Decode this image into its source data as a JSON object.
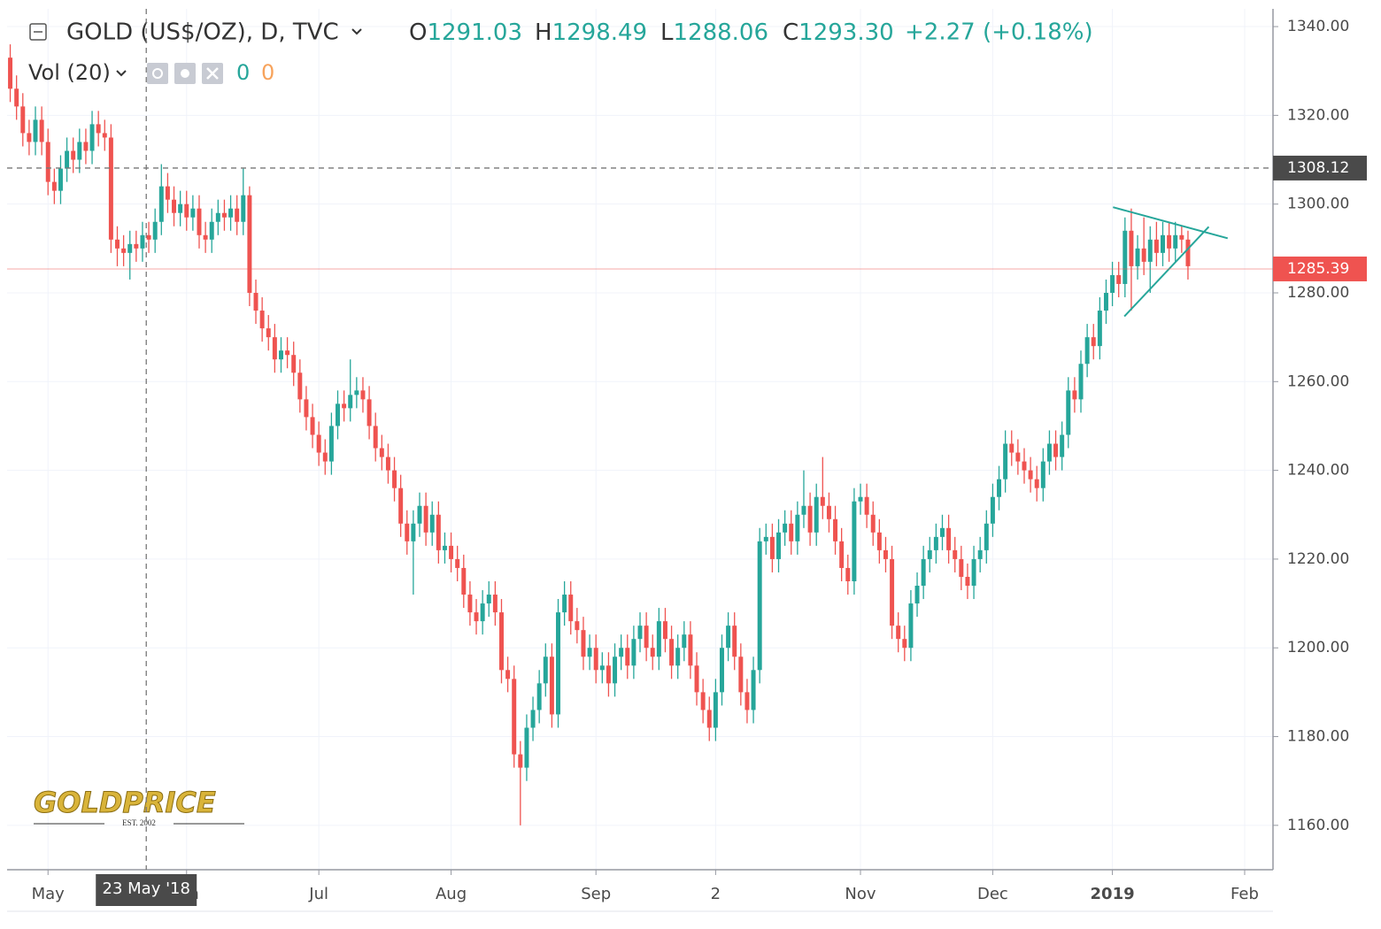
{
  "header": {
    "symbol": "GOLD (US$/OZ), D, TVC",
    "ohlc": [
      {
        "key": "O",
        "value": "1291.03"
      },
      {
        "key": "H",
        "value": "1298.49"
      },
      {
        "key": "L",
        "value": "1288.06"
      },
      {
        "key": "C",
        "value": "1293.30"
      }
    ],
    "change": "+2.27 (+0.18%)"
  },
  "volume_legend": {
    "label": "Vol (20)",
    "values": [
      "0",
      "0"
    ]
  },
  "watermark": {
    "brand": "GOLDPRICE",
    "est": "EST. 2002"
  },
  "chart_data": {
    "type": "candlestick",
    "up_color": "#26a69a",
    "down_color": "#ef5350",
    "grid": true,
    "xlim": [
      -0.5,
      200.5
    ],
    "xticks": [
      {
        "value": 6,
        "label": "May"
      },
      {
        "value": 28,
        "label": "Jun"
      },
      {
        "value": 49,
        "label": "Jul"
      },
      {
        "value": 70,
        "label": "Aug"
      },
      {
        "value": 93,
        "label": "Sep"
      },
      {
        "value": 112,
        "label": "2"
      },
      {
        "value": 135,
        "label": "Nov"
      },
      {
        "value": 156,
        "label": "Dec"
      },
      {
        "value": 175,
        "label": "2019"
      },
      {
        "value": 196,
        "label": "Feb"
      }
    ],
    "ylim": [
      1150,
      1344
    ],
    "yticks": [
      {
        "value": 1160,
        "label": "1160.00"
      },
      {
        "value": 1180,
        "label": "1180.00"
      },
      {
        "value": 1200,
        "label": "1200.00"
      },
      {
        "value": 1220,
        "label": "1220.00"
      },
      {
        "value": 1240,
        "label": "1240.00"
      },
      {
        "value": 1260,
        "label": "1260.00"
      },
      {
        "value": 1280,
        "label": "1280.00"
      },
      {
        "value": 1300,
        "label": "1300.00"
      },
      {
        "value": 1320,
        "label": "1320.00"
      },
      {
        "value": 1340,
        "label": "1340.00"
      }
    ],
    "open": [
      1333,
      1326,
      1322,
      1316,
      1314,
      1319,
      1314,
      1305,
      1303,
      1308,
      1312,
      1310,
      1314,
      1312,
      1318,
      1316,
      1315,
      1292,
      1290,
      1289,
      1291,
      1290,
      1293,
      1292,
      1296,
      1304,
      1301,
      1298,
      1300,
      1297,
      1299,
      1293,
      1292,
      1296,
      1298,
      1297,
      1299,
      1296,
      1302,
      1280,
      1276,
      1272,
      1270,
      1265,
      1267,
      1266,
      1262,
      1256,
      1252,
      1248,
      1244,
      1242,
      1250,
      1255,
      1254,
      1257,
      1258,
      1256,
      1250,
      1245,
      1243,
      1240,
      1236,
      1228,
      1224,
      1228,
      1232,
      1226,
      1230,
      1222,
      1223,
      1220,
      1218,
      1212,
      1208,
      1206,
      1210,
      1212,
      1208,
      1195,
      1193,
      1176,
      1173,
      1182,
      1186,
      1192,
      1198,
      1185,
      1208,
      1212,
      1206,
      1204,
      1198,
      1200,
      1195,
      1196,
      1192,
      1198,
      1200,
      1196,
      1202,
      1205,
      1200,
      1198,
      1206,
      1202,
      1196,
      1200,
      1203,
      1196,
      1190,
      1186,
      1182,
      1190,
      1200,
      1205,
      1198,
      1190,
      1186,
      1195,
      1224,
      1225,
      1220,
      1226,
      1228,
      1224,
      1230,
      1232,
      1226,
      1234,
      1232,
      1229,
      1224,
      1218,
      1215,
      1233,
      1234,
      1230,
      1226,
      1222,
      1220,
      1205,
      1202,
      1200,
      1210,
      1214,
      1220,
      1222,
      1225,
      1227,
      1222,
      1220,
      1216,
      1214,
      1220,
      1222,
      1228,
      1234,
      1238,
      1246,
      1244,
      1242,
      1240,
      1238,
      1236,
      1242,
      1246,
      1243,
      1248,
      1258,
      1256,
      1264,
      1270,
      1268,
      1276,
      1280,
      1284,
      1282,
      1294,
      1286,
      1290,
      1287,
      1292,
      1289,
      1293,
      1290,
      1293,
      1292
    ],
    "high": [
      1336,
      1329,
      1325,
      1319,
      1322,
      1322,
      1317,
      1308,
      1311,
      1315,
      1315,
      1317,
      1317,
      1321,
      1321,
      1319,
      1318,
      1295,
      1293,
      1294,
      1294,
      1296,
      1296,
      1299,
      1309,
      1307,
      1304,
      1303,
      1303,
      1302,
      1302,
      1296,
      1299,
      1301,
      1301,
      1302,
      1302,
      1308,
      1304,
      1283,
      1279,
      1275,
      1273,
      1270,
      1270,
      1269,
      1265,
      1259,
      1255,
      1251,
      1247,
      1253,
      1258,
      1258,
      1265,
      1261,
      1261,
      1259,
      1253,
      1248,
      1246,
      1243,
      1239,
      1231,
      1231,
      1235,
      1235,
      1233,
      1233,
      1226,
      1226,
      1223,
      1221,
      1215,
      1211,
      1213,
      1215,
      1215,
      1211,
      1198,
      1196,
      1179,
      1185,
      1189,
      1195,
      1201,
      1201,
      1211,
      1215,
      1215,
      1209,
      1207,
      1203,
      1203,
      1199,
      1199,
      1201,
      1203,
      1203,
      1205,
      1208,
      1208,
      1203,
      1209,
      1209,
      1205,
      1203,
      1206,
      1206,
      1199,
      1193,
      1189,
      1193,
      1203,
      1208,
      1208,
      1201,
      1193,
      1198,
      1227,
      1228,
      1228,
      1229,
      1231,
      1231,
      1233,
      1240,
      1235,
      1237,
      1243,
      1235,
      1232,
      1227,
      1221,
      1236,
      1237,
      1237,
      1233,
      1229,
      1225,
      1223,
      1208,
      1205,
      1213,
      1217,
      1223,
      1225,
      1228,
      1230,
      1230,
      1225,
      1223,
      1219,
      1223,
      1225,
      1231,
      1237,
      1241,
      1249,
      1249,
      1247,
      1245,
      1243,
      1241,
      1245,
      1249,
      1249,
      1251,
      1261,
      1261,
      1267,
      1273,
      1273,
      1279,
      1283,
      1287,
      1287,
      1297,
      1299,
      1293,
      1297,
      1295,
      1296,
      1296,
      1296,
      1296,
      1295,
      1294
    ],
    "low": [
      1323,
      1319,
      1313,
      1311,
      1311,
      1311,
      1302,
      1300,
      1300,
      1305,
      1307,
      1307,
      1309,
      1309,
      1313,
      1312,
      1289,
      1286,
      1286,
      1283,
      1287,
      1287,
      1289,
      1289,
      1293,
      1298,
      1295,
      1295,
      1294,
      1294,
      1290,
      1289,
      1289,
      1293,
      1294,
      1294,
      1293,
      1293,
      1277,
      1273,
      1269,
      1267,
      1262,
      1262,
      1263,
      1259,
      1253,
      1249,
      1245,
      1241,
      1239,
      1239,
      1247,
      1251,
      1251,
      1254,
      1253,
      1247,
      1242,
      1240,
      1237,
      1233,
      1225,
      1221,
      1212,
      1225,
      1223,
      1223,
      1219,
      1219,
      1217,
      1215,
      1209,
      1205,
      1203,
      1203,
      1207,
      1205,
      1192,
      1190,
      1173,
      1160,
      1170,
      1179,
      1183,
      1189,
      1182,
      1182,
      1205,
      1203,
      1201,
      1195,
      1195,
      1192,
      1192,
      1189,
      1189,
      1195,
      1193,
      1193,
      1199,
      1197,
      1195,
      1195,
      1199,
      1193,
      1193,
      1197,
      1193,
      1187,
      1183,
      1179,
      1179,
      1187,
      1197,
      1195,
      1187,
      1183,
      1183,
      1192,
      1221,
      1217,
      1217,
      1223,
      1221,
      1221,
      1227,
      1223,
      1223,
      1229,
      1226,
      1221,
      1215,
      1212,
      1212,
      1230,
      1227,
      1223,
      1219,
      1217,
      1202,
      1199,
      1197,
      1197,
      1207,
      1211,
      1217,
      1219,
      1222,
      1219,
      1217,
      1213,
      1211,
      1211,
      1217,
      1219,
      1225,
      1231,
      1235,
      1241,
      1239,
      1237,
      1235,
      1233,
      1233,
      1239,
      1240,
      1240,
      1245,
      1253,
      1253,
      1261,
      1265,
      1265,
      1273,
      1277,
      1279,
      1279,
      1276,
      1283,
      1284,
      1280,
      1286,
      1286,
      1287,
      1287,
      1289,
      1283
    ],
    "close": [
      1326,
      1322,
      1316,
      1314,
      1319,
      1314,
      1305,
      1303,
      1308,
      1312,
      1310,
      1314,
      1312,
      1318,
      1316,
      1315,
      1292,
      1290,
      1289,
      1291,
      1290,
      1293,
      1292,
      1296,
      1304,
      1301,
      1298,
      1300,
      1297,
      1299,
      1293,
      1292,
      1296,
      1298,
      1297,
      1299,
      1296,
      1302,
      1280,
      1276,
      1272,
      1270,
      1265,
      1267,
      1266,
      1262,
      1256,
      1252,
      1248,
      1244,
      1242,
      1250,
      1255,
      1254,
      1257,
      1258,
      1256,
      1250,
      1245,
      1243,
      1240,
      1236,
      1228,
      1224,
      1228,
      1232,
      1226,
      1230,
      1222,
      1223,
      1220,
      1218,
      1212,
      1208,
      1206,
      1210,
      1212,
      1208,
      1195,
      1193,
      1176,
      1173,
      1182,
      1186,
      1192,
      1198,
      1185,
      1208,
      1212,
      1206,
      1204,
      1198,
      1200,
      1195,
      1196,
      1192,
      1198,
      1200,
      1196,
      1202,
      1205,
      1200,
      1198,
      1206,
      1202,
      1196,
      1200,
      1203,
      1196,
      1190,
      1186,
      1182,
      1190,
      1200,
      1205,
      1198,
      1190,
      1186,
      1195,
      1224,
      1225,
      1220,
      1226,
      1228,
      1224,
      1230,
      1232,
      1226,
      1234,
      1232,
      1229,
      1224,
      1218,
      1215,
      1233,
      1234,
      1230,
      1226,
      1222,
      1220,
      1205,
      1202,
      1200,
      1210,
      1214,
      1220,
      1222,
      1225,
      1227,
      1222,
      1220,
      1216,
      1214,
      1220,
      1222,
      1228,
      1234,
      1238,
      1246,
      1244,
      1242,
      1240,
      1238,
      1236,
      1242,
      1246,
      1243,
      1248,
      1258,
      1256,
      1264,
      1270,
      1268,
      1276,
      1280,
      1284,
      1282,
      1294,
      1286,
      1290,
      1287,
      1292,
      1289,
      1293,
      1290,
      1293,
      1292,
      1286
    ],
    "trendlines": [
      {
        "color": "#26a69a",
        "x": [
          175.1,
          193.3
        ],
        "y": [
          1299.3,
          1292.3
        ]
      },
      {
        "color": "#26a69a",
        "x": [
          176.9,
          190.3
        ],
        "y": [
          1274.7,
          1294.9
        ]
      }
    ],
    "crosshair": {
      "x": 21.6,
      "x_label": "23 May '18",
      "y": 1308.12
    },
    "last_price": {
      "value": 1285.39,
      "color": "#ef5350"
    }
  }
}
